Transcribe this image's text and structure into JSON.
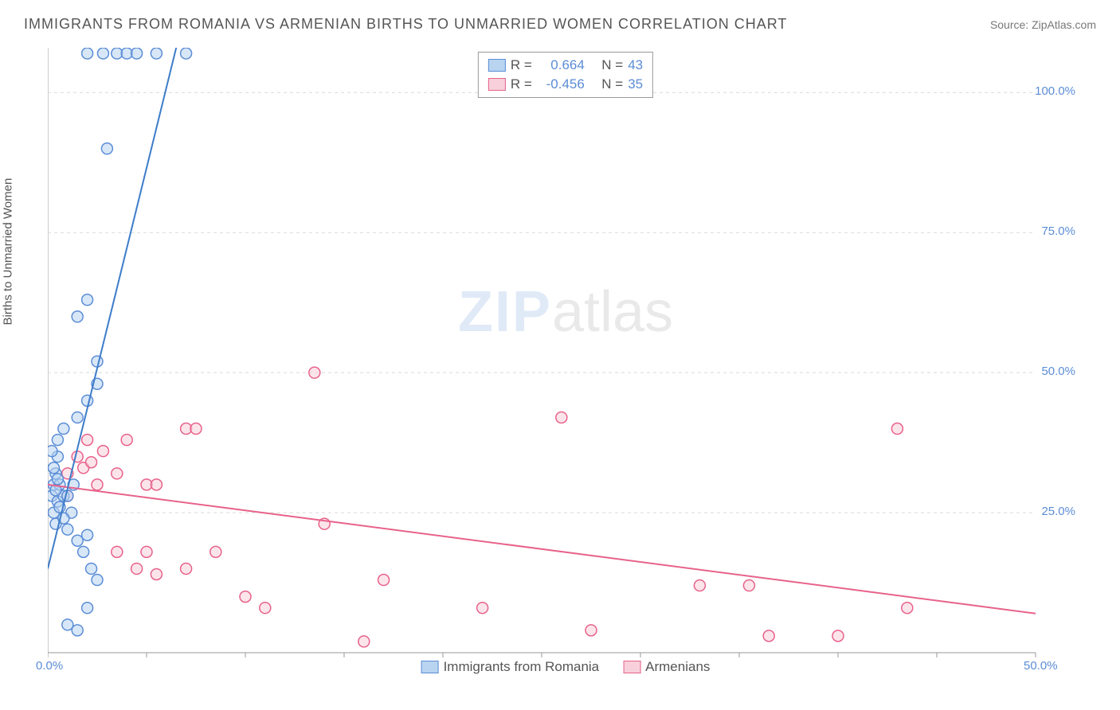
{
  "title": "IMMIGRANTS FROM ROMANIA VS ARMENIAN BIRTHS TO UNMARRIED WOMEN CORRELATION CHART",
  "source_label": "Source: ZipAtlas.com",
  "watermark": {
    "left": "ZIP",
    "right": "atlas"
  },
  "chart": {
    "type": "scatter",
    "background_color": "#ffffff",
    "grid_color": "#d9d9d9",
    "axis_color": "#999999",
    "xlim": [
      0,
      50
    ],
    "ylim": [
      0,
      108
    ],
    "x_ticks": [
      0,
      5,
      10,
      15,
      20,
      25,
      30,
      35,
      40,
      45,
      50
    ],
    "x_tick_labels": {
      "0": "0.0%",
      "50": "50.0%"
    },
    "y_ticks": [
      25,
      50,
      75,
      100
    ],
    "y_tick_labels": {
      "25": "25.0%",
      "50": "50.0%",
      "75": "75.0%",
      "100": "100.0%"
    },
    "y_axis_label": "Births to Unmarried Women",
    "tick_label_color": "#5b8dd6",
    "axis_label_color": "#555555",
    "axis_label_fontsize": 15,
    "tick_label_fontsize": 15,
    "marker_radius": 7,
    "marker_stroke_width": 1.5,
    "line_width": 2
  },
  "series": {
    "romania": {
      "label": "Immigrants from Romania",
      "fill_color": "#b8d4f0",
      "stroke_color": "#5b8dd6",
      "line_color": "#3d7cc9",
      "r_value": "0.664",
      "n_value": "43",
      "regression": {
        "x1": 0,
        "y1": 15,
        "x2": 6.5,
        "y2": 108
      },
      "points": [
        [
          0.2,
          28
        ],
        [
          0.3,
          30
        ],
        [
          0.4,
          32
        ],
        [
          0.5,
          35
        ],
        [
          0.3,
          25
        ],
        [
          0.4,
          23
        ],
        [
          0.5,
          27
        ],
        [
          0.6,
          30
        ],
        [
          0.8,
          28
        ],
        [
          1.0,
          22
        ],
        [
          1.2,
          25
        ],
        [
          1.5,
          20
        ],
        [
          1.8,
          18
        ],
        [
          2.0,
          21
        ],
        [
          2.2,
          15
        ],
        [
          2.5,
          13
        ],
        [
          1.0,
          5
        ],
        [
          1.5,
          4
        ],
        [
          2.0,
          8
        ],
        [
          0.5,
          38
        ],
        [
          0.8,
          40
        ],
        [
          1.5,
          42
        ],
        [
          2.0,
          45
        ],
        [
          2.5,
          48
        ],
        [
          2.5,
          52
        ],
        [
          1.5,
          60
        ],
        [
          2.0,
          63
        ],
        [
          3.0,
          90
        ],
        [
          2.0,
          107
        ],
        [
          2.8,
          107
        ],
        [
          3.5,
          107
        ],
        [
          4.0,
          107
        ],
        [
          4.5,
          107
        ],
        [
          5.5,
          107
        ],
        [
          7.0,
          107
        ],
        [
          0.3,
          33
        ],
        [
          0.4,
          29
        ],
        [
          0.6,
          26
        ],
        [
          0.8,
          24
        ],
        [
          1.0,
          28
        ],
        [
          1.3,
          30
        ],
        [
          0.2,
          36
        ],
        [
          0.5,
          31
        ]
      ]
    },
    "armenians": {
      "label": "Armenians",
      "fill_color": "#f7d0db",
      "stroke_color": "#e8628b",
      "line_color": "#e8628b",
      "r_value": "-0.456",
      "n_value": "35",
      "regression": {
        "x1": 0,
        "y1": 30,
        "x2": 50,
        "y2": 7
      },
      "points": [
        [
          1.0,
          32
        ],
        [
          1.5,
          35
        ],
        [
          2.0,
          38
        ],
        [
          2.5,
          30
        ],
        [
          2.8,
          36
        ],
        [
          3.5,
          32
        ],
        [
          4.0,
          38
        ],
        [
          5.0,
          30
        ],
        [
          5.5,
          30
        ],
        [
          7.0,
          40
        ],
        [
          7.5,
          40
        ],
        [
          3.5,
          18
        ],
        [
          4.5,
          15
        ],
        [
          5.0,
          18
        ],
        [
          5.5,
          14
        ],
        [
          7.0,
          15
        ],
        [
          8.5,
          18
        ],
        [
          10.0,
          10
        ],
        [
          11.0,
          8
        ],
        [
          13.5,
          50
        ],
        [
          14.0,
          23
        ],
        [
          16.0,
          2
        ],
        [
          17.0,
          13
        ],
        [
          22.0,
          8
        ],
        [
          26.0,
          42
        ],
        [
          27.5,
          4
        ],
        [
          33.0,
          12
        ],
        [
          35.5,
          12
        ],
        [
          36.5,
          3
        ],
        [
          40.0,
          3
        ],
        [
          43.0,
          40
        ],
        [
          43.5,
          8
        ],
        [
          1.0,
          28
        ],
        [
          1.8,
          33
        ],
        [
          2.2,
          34
        ]
      ]
    }
  },
  "legend_top": {
    "r_label": "R =",
    "n_label": "N ="
  },
  "legend_bottom": [
    {
      "key": "romania"
    },
    {
      "key": "armenians"
    }
  ]
}
